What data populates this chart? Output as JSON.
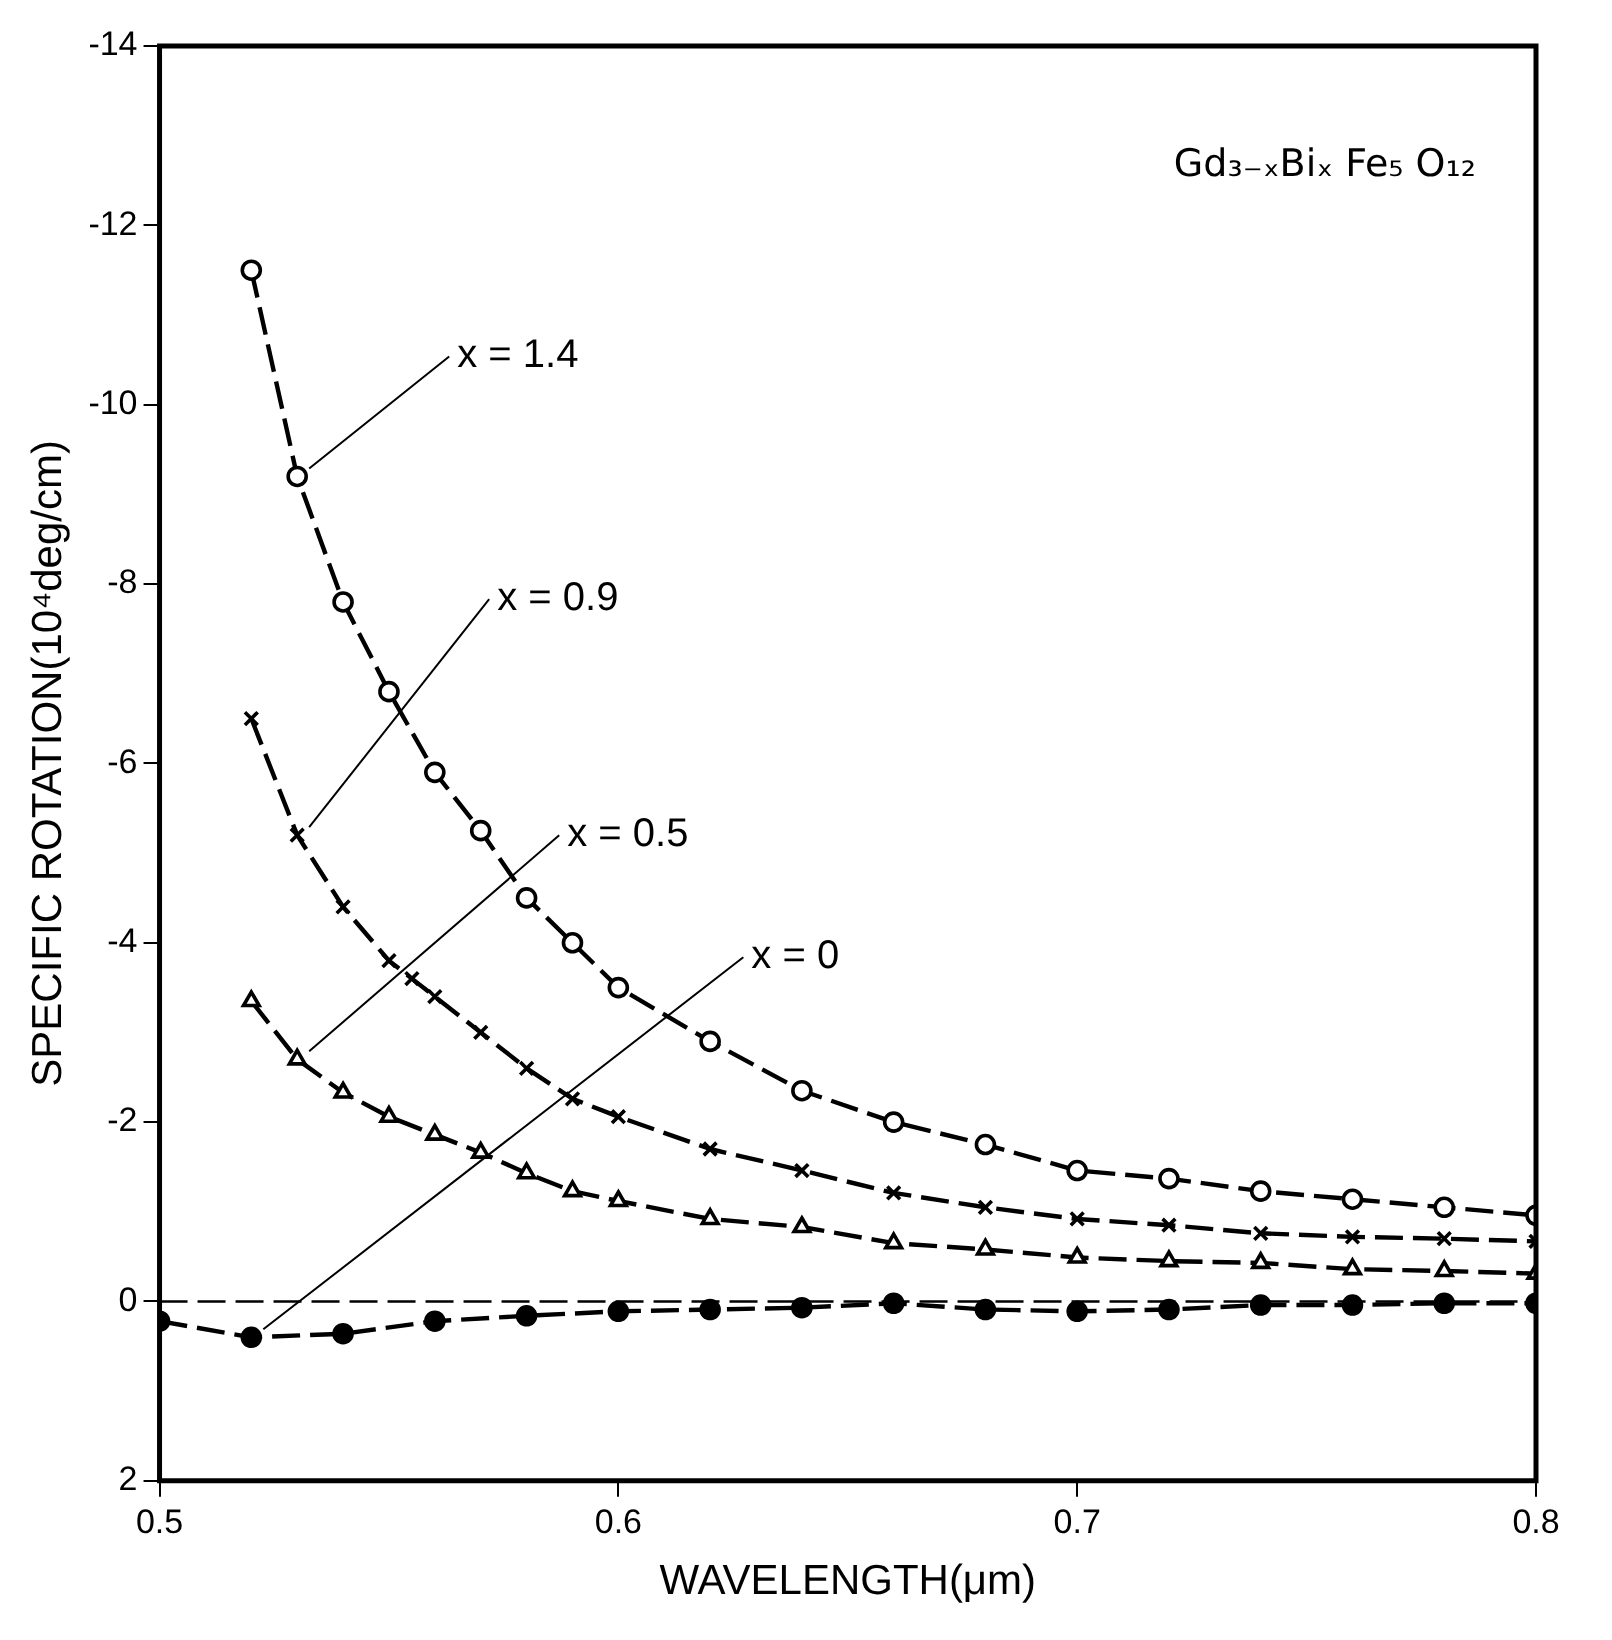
{
  "chart_data": {
    "type": "line",
    "title": "Gd₃₋ₓBiₓ Fe₅ O₁₂",
    "xlabel": "WAVELENGTH(μm)",
    "ylabel": "SPECIFIC ROTATION(10⁴deg/cm)",
    "xlim": [
      0.5,
      0.8
    ],
    "xticks": [
      0.5,
      0.6,
      0.7,
      0.8
    ],
    "ylim": [
      2,
      -14
    ],
    "yticks": [
      -14,
      -12,
      -10,
      -8,
      -6,
      -4,
      -2,
      0,
      2
    ],
    "grid": false,
    "legend": false,
    "line_style": "dashed",
    "ref_lines": [
      {
        "axis": "y",
        "value": 0,
        "line_style": "dashed",
        "color": "#000000"
      }
    ],
    "series": [
      {
        "name": "x = 1.4",
        "color": "#000000",
        "marker": "circle",
        "x": [
          0.52,
          0.53,
          0.54,
          0.55,
          0.56,
          0.57,
          0.58,
          0.59,
          0.6,
          0.62,
          0.64,
          0.66,
          0.68,
          0.7,
          0.72,
          0.74,
          0.76,
          0.78,
          0.8
        ],
        "values": [
          -11.5,
          -9.2,
          -7.8,
          -6.8,
          -5.9,
          -5.25,
          -4.5,
          -4.0,
          -3.5,
          -2.9,
          -2.35,
          -2.0,
          -1.75,
          -1.46,
          -1.37,
          -1.23,
          -1.14,
          -1.05,
          -0.96
        ]
      },
      {
        "name": "x = 0.9",
        "color": "#000000",
        "marker": "cross",
        "x": [
          0.52,
          0.53,
          0.54,
          0.55,
          0.555,
          0.56,
          0.57,
          0.58,
          0.59,
          0.6,
          0.62,
          0.64,
          0.66,
          0.68,
          0.7,
          0.72,
          0.74,
          0.76,
          0.78,
          0.8
        ],
        "values": [
          -6.5,
          -5.2,
          -4.4,
          -3.8,
          -3.6,
          -3.4,
          -3.0,
          -2.6,
          -2.26,
          -2.06,
          -1.7,
          -1.46,
          -1.21,
          -1.05,
          -0.92,
          -0.85,
          -0.76,
          -0.72,
          -0.7,
          -0.67
        ]
      },
      {
        "name": "x = 0.5",
        "color": "#000000",
        "marker": "triangle",
        "x": [
          0.52,
          0.53,
          0.54,
          0.55,
          0.56,
          0.57,
          0.58,
          0.59,
          0.6,
          0.62,
          0.64,
          0.66,
          0.68,
          0.7,
          0.72,
          0.74,
          0.76,
          0.78,
          0.8
        ],
        "values": [
          -3.35,
          -2.7,
          -2.33,
          -2.06,
          -1.86,
          -1.66,
          -1.43,
          -1.23,
          -1.12,
          -0.92,
          -0.83,
          -0.65,
          -0.58,
          -0.49,
          -0.45,
          -0.43,
          -0.36,
          -0.34,
          -0.31
        ]
      },
      {
        "name": "x = 0",
        "color": "#000000",
        "marker": "circle",
        "x": [
          0.5,
          0.52,
          0.54,
          0.56,
          0.58,
          0.6,
          0.62,
          0.64,
          0.66,
          0.68,
          0.7,
          0.72,
          0.74,
          0.76,
          0.78,
          0.8
        ],
        "values": [
          0.22,
          0.4,
          0.36,
          0.22,
          0.16,
          0.11,
          0.09,
          0.07,
          0.02,
          0.09,
          0.11,
          0.09,
          0.04,
          0.04,
          0.02,
          0.02
        ]
      }
    ]
  }
}
